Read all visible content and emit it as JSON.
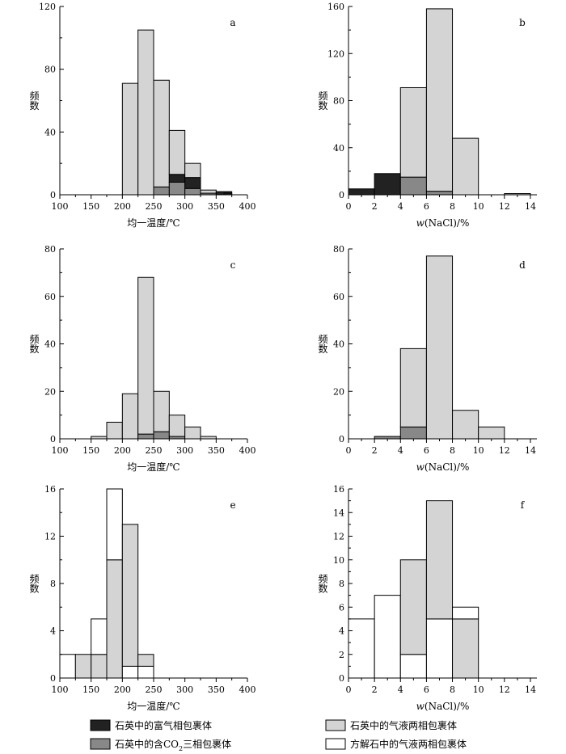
{
  "colors": {
    "gas_rich": "#222222",
    "co2_three_phase": "#888888",
    "quartz_two_phase": "#d4d4d4",
    "calcite_two_phase": "#ffffff",
    "stroke": "#000000"
  },
  "legend": {
    "gas_rich": "石英中的富气相包裹体",
    "co2_prefix": "石英中的含CO",
    "co2_sub": "2",
    "co2_suffix": "三相包裹体",
    "quartz_two_phase": "石英中的气液两相包裹体",
    "calcite_two_phase": "方解石中的气液两相包裹体"
  },
  "chart_data": [
    {
      "id": "a",
      "type": "bar",
      "stacked": true,
      "ylabel": "频数",
      "xlabel": "均一温度/℃",
      "xlim": [
        100,
        400
      ],
      "ylim": [
        0,
        120
      ],
      "xticks": [
        100,
        150,
        200,
        250,
        300,
        350,
        400
      ],
      "yticks": [
        0,
        40,
        80,
        120
      ],
      "bin_width": 25,
      "bins": [
        {
          "x0": 200,
          "layers": [
            {
              "class": "quartz_two_phase",
              "value": 71
            }
          ]
        },
        {
          "x0": 225,
          "layers": [
            {
              "class": "quartz_two_phase",
              "value": 105
            }
          ]
        },
        {
          "x0": 250,
          "layers": [
            {
              "class": "co2_three_phase",
              "value": 5
            },
            {
              "class": "quartz_two_phase",
              "value": 68
            }
          ]
        },
        {
          "x0": 275,
          "layers": [
            {
              "class": "co2_three_phase",
              "value": 8
            },
            {
              "class": "gas_rich",
              "value": 5
            },
            {
              "class": "quartz_two_phase",
              "value": 28
            }
          ]
        },
        {
          "x0": 300,
          "layers": [
            {
              "class": "co2_three_phase",
              "value": 4
            },
            {
              "class": "gas_rich",
              "value": 7
            },
            {
              "class": "quartz_two_phase",
              "value": 9
            }
          ]
        },
        {
          "x0": 325,
          "layers": [
            {
              "class": "co2_three_phase",
              "value": 1
            },
            {
              "class": "quartz_two_phase",
              "value": 2
            }
          ]
        },
        {
          "x0": 350,
          "layers": [
            {
              "class": "gas_rich",
              "value": 2
            }
          ]
        },
        {
          "x0": 362.5,
          "width": 12.5,
          "layers": [
            {
              "class": "gas_rich",
              "value": 1
            }
          ]
        }
      ]
    },
    {
      "id": "b",
      "type": "bar",
      "stacked": true,
      "ylabel": "频数",
      "xlabel_italic": "w",
      "xlabel_rest": "(NaCl)/%",
      "xlim": [
        0,
        14.5
      ],
      "ylim": [
        0,
        160
      ],
      "xticks": [
        0,
        2,
        4,
        6,
        8,
        10,
        12,
        14
      ],
      "yticks": [
        0,
        40,
        80,
        120,
        160
      ],
      "bin_width": 2,
      "bins": [
        {
          "x0": 0,
          "layers": [
            {
              "class": "gas_rich",
              "value": 5
            }
          ]
        },
        {
          "x0": 2,
          "layers": [
            {
              "class": "gas_rich",
              "value": 18
            }
          ]
        },
        {
          "x0": 4,
          "layers": [
            {
              "class": "co2_three_phase",
              "value": 15
            },
            {
              "class": "quartz_two_phase",
              "value": 76
            }
          ]
        },
        {
          "x0": 6,
          "layers": [
            {
              "class": "co2_three_phase",
              "value": 3
            },
            {
              "class": "quartz_two_phase",
              "value": 155
            }
          ]
        },
        {
          "x0": 8,
          "layers": [
            {
              "class": "quartz_two_phase",
              "value": 48
            }
          ]
        },
        {
          "x0": 12,
          "layers": [
            {
              "class": "quartz_two_phase",
              "value": 1
            }
          ]
        }
      ]
    },
    {
      "id": "c",
      "type": "bar",
      "stacked": true,
      "ylabel": "频数",
      "xlabel": "均一温度/℃",
      "xlim": [
        100,
        400
      ],
      "ylim": [
        0,
        80
      ],
      "xticks": [
        100,
        150,
        200,
        250,
        300,
        350,
        400
      ],
      "yticks": [
        0,
        20,
        40,
        60,
        80
      ],
      "bin_width": 25,
      "bins": [
        {
          "x0": 150,
          "layers": [
            {
              "class": "quartz_two_phase",
              "value": 1
            }
          ]
        },
        {
          "x0": 175,
          "layers": [
            {
              "class": "quartz_two_phase",
              "value": 7
            }
          ]
        },
        {
          "x0": 200,
          "layers": [
            {
              "class": "quartz_two_phase",
              "value": 19
            }
          ]
        },
        {
          "x0": 225,
          "layers": [
            {
              "class": "co2_three_phase",
              "value": 2
            },
            {
              "class": "quartz_two_phase",
              "value": 66
            }
          ]
        },
        {
          "x0": 250,
          "layers": [
            {
              "class": "co2_three_phase",
              "value": 3
            },
            {
              "class": "quartz_two_phase",
              "value": 17
            }
          ]
        },
        {
          "x0": 275,
          "layers": [
            {
              "class": "co2_three_phase",
              "value": 1
            },
            {
              "class": "quartz_two_phase",
              "value": 9
            }
          ]
        },
        {
          "x0": 300,
          "layers": [
            {
              "class": "quartz_two_phase",
              "value": 5
            }
          ]
        },
        {
          "x0": 325,
          "layers": [
            {
              "class": "quartz_two_phase",
              "value": 1
            }
          ]
        }
      ]
    },
    {
      "id": "d",
      "type": "bar",
      "stacked": true,
      "ylabel": "频数",
      "xlabel_italic": "w",
      "xlabel_rest": "(NaCl)/%",
      "xlim": [
        0,
        14.5
      ],
      "ylim": [
        0,
        80
      ],
      "xticks": [
        0,
        2,
        4,
        6,
        8,
        10,
        12,
        14
      ],
      "yticks": [
        0,
        20,
        40,
        60,
        80
      ],
      "bin_width": 2,
      "bins": [
        {
          "x0": 2,
          "layers": [
            {
              "class": "co2_three_phase",
              "value": 1
            }
          ]
        },
        {
          "x0": 4,
          "layers": [
            {
              "class": "co2_three_phase",
              "value": 5
            },
            {
              "class": "quartz_two_phase",
              "value": 33
            }
          ]
        },
        {
          "x0": 6,
          "layers": [
            {
              "class": "quartz_two_phase",
              "value": 77
            }
          ]
        },
        {
          "x0": 8,
          "layers": [
            {
              "class": "quartz_two_phase",
              "value": 12
            }
          ]
        },
        {
          "x0": 10,
          "layers": [
            {
              "class": "quartz_two_phase",
              "value": 5
            }
          ]
        }
      ]
    },
    {
      "id": "e",
      "type": "bar",
      "stacked": true,
      "ylabel": "频数",
      "xlabel": "均一温度/℃",
      "xlim": [
        100,
        400
      ],
      "ylim": [
        0,
        16
      ],
      "xticks": [
        100,
        150,
        200,
        250,
        300,
        350,
        400
      ],
      "yticks": [
        0,
        4,
        8,
        12,
        16
      ],
      "bin_width": 25,
      "bins": [
        {
          "x0": 100,
          "layers": [
            {
              "class": "calcite_two_phase",
              "value": 2
            }
          ]
        },
        {
          "x0": 125,
          "layers": [
            {
              "class": "quartz_two_phase",
              "value": 2
            }
          ]
        },
        {
          "x0": 150,
          "layers": [
            {
              "class": "quartz_two_phase",
              "value": 2
            },
            {
              "class": "calcite_two_phase",
              "value": 3
            }
          ]
        },
        {
          "x0": 175,
          "layers": [
            {
              "class": "quartz_two_phase",
              "value": 10
            },
            {
              "class": "calcite_two_phase",
              "value": 6
            }
          ]
        },
        {
          "x0": 200,
          "layers": [
            {
              "class": "calcite_two_phase",
              "value": 1
            },
            {
              "class": "quartz_two_phase",
              "value": 12
            }
          ]
        },
        {
          "x0": 225,
          "layers": [
            {
              "class": "calcite_two_phase",
              "value": 1
            },
            {
              "class": "quartz_two_phase",
              "value": 1
            }
          ]
        }
      ]
    },
    {
      "id": "f",
      "type": "bar",
      "stacked": true,
      "ylabel": "频数",
      "xlabel_italic": "w",
      "xlabel_rest": "(NaCl)/%",
      "xlim": [
        0,
        14.5
      ],
      "ylim": [
        0,
        16
      ],
      "xticks": [
        0,
        2,
        4,
        6,
        8,
        10,
        12,
        14
      ],
      "yticks": [
        0,
        2,
        4,
        6,
        8,
        10,
        12,
        14,
        16
      ],
      "bin_width": 2,
      "bins": [
        {
          "x0": 0,
          "layers": [
            {
              "class": "calcite_two_phase",
              "value": 5
            }
          ]
        },
        {
          "x0": 2,
          "layers": [
            {
              "class": "calcite_two_phase",
              "value": 7
            }
          ]
        },
        {
          "x0": 4,
          "layers": [
            {
              "class": "calcite_two_phase",
              "value": 2
            },
            {
              "class": "quartz_two_phase",
              "value": 8
            }
          ]
        },
        {
          "x0": 6,
          "layers": [
            {
              "class": "calcite_two_phase",
              "value": 5
            },
            {
              "class": "quartz_two_phase",
              "value": 10
            }
          ]
        },
        {
          "x0": 8,
          "layers": [
            {
              "class": "quartz_two_phase",
              "value": 5
            },
            {
              "class": "calcite_two_phase",
              "value": 1
            }
          ]
        }
      ]
    }
  ]
}
